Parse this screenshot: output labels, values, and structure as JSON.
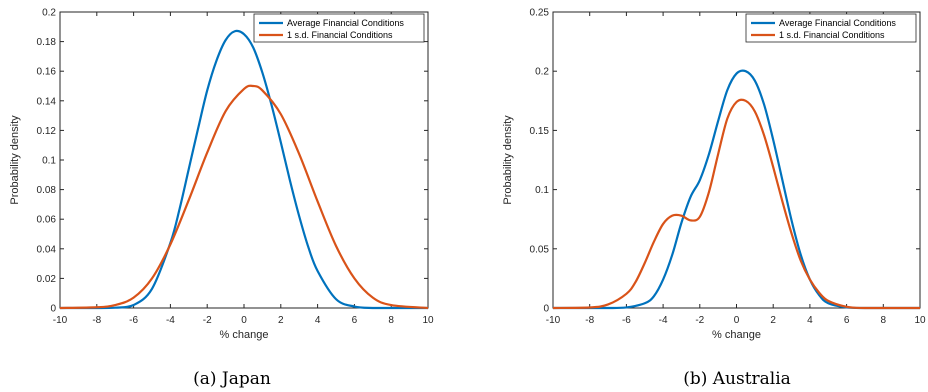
{
  "colors": {
    "average": "#0072BD",
    "sd": "#D95319"
  },
  "chart_data": [
    {
      "type": "line",
      "caption": "(a)  Japan",
      "xlabel": "% change",
      "ylabel": "Probability density",
      "xlim": [
        -10,
        10
      ],
      "ylim": [
        0,
        0.2
      ],
      "xticks": [
        "-10",
        "-8",
        "-6",
        "-4",
        "-2",
        "0",
        "2",
        "4",
        "6",
        "8",
        "10"
      ],
      "yticks": [
        "0",
        "0.02",
        "0.04",
        "0.06",
        "0.08",
        "0.1",
        "0.12",
        "0.14",
        "0.16",
        "0.18",
        "0.2"
      ],
      "legend_position": "top-right",
      "series": [
        {
          "name": "Average Financial Conditions",
          "x": [
            -10,
            -8,
            -7,
            -6,
            -5,
            -4,
            -3.5,
            -3,
            -2.5,
            -2,
            -1.5,
            -1,
            -0.5,
            0,
            0.5,
            1,
            1.5,
            2,
            2.5,
            3,
            3.5,
            4,
            5,
            6,
            7,
            8,
            10
          ],
          "y": [
            0,
            0,
            0.0002,
            0.002,
            0.013,
            0.044,
            0.067,
            0.094,
            0.121,
            0.147,
            0.167,
            0.181,
            0.187,
            0.185,
            0.176,
            0.159,
            0.137,
            0.112,
            0.086,
            0.062,
            0.041,
            0.025,
            0.006,
            0.001,
            0,
            0,
            0
          ]
        },
        {
          "name": "1 s.d. Financial Conditions",
          "x": [
            -10,
            -8,
            -7,
            -6,
            -5,
            -4,
            -3,
            -2,
            -1,
            0,
            0.5,
            1,
            2,
            3,
            4,
            5,
            6,
            7,
            8,
            10
          ],
          "y": [
            0,
            0.0005,
            0.002,
            0.007,
            0.02,
            0.043,
            0.073,
            0.105,
            0.133,
            0.148,
            0.15,
            0.147,
            0.131,
            0.104,
            0.072,
            0.042,
            0.02,
            0.007,
            0.002,
            0
          ]
        }
      ]
    },
    {
      "type": "line",
      "caption": "(b)  Australia",
      "xlabel": "% change",
      "ylabel": "Probability density",
      "xlim": [
        -10,
        10
      ],
      "ylim": [
        0,
        0.25
      ],
      "xticks": [
        "-10",
        "-8",
        "-6",
        "-4",
        "-2",
        "0",
        "2",
        "4",
        "6",
        "8",
        "10"
      ],
      "yticks": [
        "0",
        "0.05",
        "0.1",
        "0.15",
        "0.2",
        "0.25"
      ],
      "legend_position": "top-right",
      "series": [
        {
          "name": "Average Financial Conditions",
          "x": [
            -10,
            -7,
            -6,
            -5,
            -4.5,
            -4,
            -3.5,
            -3,
            -2.5,
            -2,
            -1.5,
            -1,
            -0.5,
            0,
            0.5,
            1,
            1.5,
            2,
            2.5,
            3,
            3.5,
            4,
            4.5,
            5,
            6,
            7,
            10
          ],
          "y": [
            0,
            0,
            0.0005,
            0.004,
            0.01,
            0.024,
            0.045,
            0.072,
            0.094,
            0.108,
            0.13,
            0.158,
            0.184,
            0.198,
            0.2,
            0.192,
            0.172,
            0.142,
            0.108,
            0.074,
            0.045,
            0.024,
            0.011,
            0.004,
            0.0005,
            0,
            0
          ]
        },
        {
          "name": "1 s.d. Financial Conditions",
          "x": [
            -10,
            -8,
            -7,
            -6,
            -5.5,
            -5,
            -4.5,
            -4,
            -3.5,
            -3,
            -2.5,
            -2,
            -1.5,
            -1,
            -0.5,
            0,
            0.5,
            1,
            1.5,
            2,
            2.5,
            3,
            3.5,
            4,
            4.5,
            5,
            6,
            7,
            10
          ],
          "y": [
            0,
            0.0004,
            0.003,
            0.012,
            0.022,
            0.038,
            0.056,
            0.071,
            0.078,
            0.078,
            0.074,
            0.077,
            0.098,
            0.13,
            0.16,
            0.174,
            0.175,
            0.166,
            0.146,
            0.119,
            0.09,
            0.063,
            0.04,
            0.024,
            0.013,
            0.006,
            0.001,
            0,
            0
          ]
        }
      ]
    }
  ]
}
